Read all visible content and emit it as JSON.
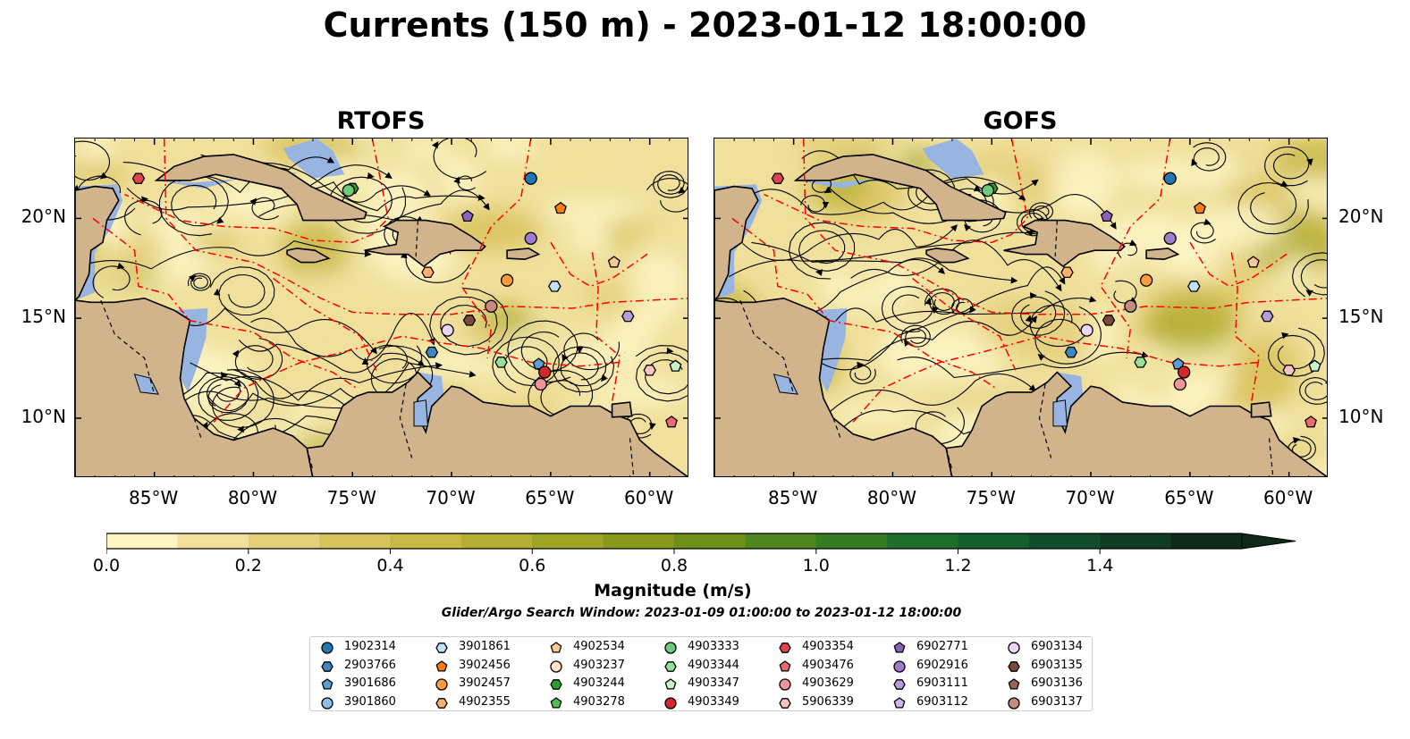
{
  "figure": {
    "title": "Currents (150 m) - 2023-01-12 18:00:00",
    "subtitle": "Glider/Argo Search Window: 2023-01-09 01:00:00 to 2023-01-12 18:00:00"
  },
  "map_extent": {
    "lon": [
      -89,
      -58
    ],
    "lat": [
      7,
      24
    ]
  },
  "axes": {
    "lon_ticks": [
      {
        "value": -85,
        "label": "85°W"
      },
      {
        "value": -80,
        "label": "80°W"
      },
      {
        "value": -75,
        "label": "75°W"
      },
      {
        "value": -70,
        "label": "70°W"
      },
      {
        "value": -65,
        "label": "65°W"
      },
      {
        "value": -60,
        "label": "60°W"
      }
    ],
    "lat_ticks": [
      {
        "value": 20,
        "label": "20°N"
      },
      {
        "value": 15,
        "label": "15°N"
      },
      {
        "value": 10,
        "label": "10°N"
      }
    ]
  },
  "panels": [
    {
      "id": "rtofs",
      "title": "RTOFS"
    },
    {
      "id": "gofs",
      "title": "GOFS"
    }
  ],
  "colorbar": {
    "label": "Magnitude (m/s)",
    "range": [
      0,
      1.6
    ],
    "extend": "max",
    "ticks": [
      {
        "value": 0.0,
        "label": "0.0"
      },
      {
        "value": 0.2,
        "label": "0.2"
      },
      {
        "value": 0.4,
        "label": "0.4"
      },
      {
        "value": 0.6,
        "label": "0.6"
      },
      {
        "value": 0.8,
        "label": "0.8"
      },
      {
        "value": 1.0,
        "label": "1.0"
      },
      {
        "value": 1.2,
        "label": "1.2"
      },
      {
        "value": 1.4,
        "label": "1.4"
      }
    ],
    "colors": [
      "#fdf5c4",
      "#f0e09c",
      "#e4cf7a",
      "#d8c25c",
      "#c8b848",
      "#b4ae34",
      "#9ea424",
      "#86991a",
      "#6c9018",
      "#4f861f",
      "#357c25",
      "#1f6f2c",
      "#145f2d",
      "#114d2a",
      "#113c24",
      "#0f2a1a"
    ]
  },
  "colors": {
    "ocean": "#98b4e0",
    "land": "#d2b48c",
    "eez_lines": "#ff0000",
    "streamlines": "#000000"
  },
  "legend": [
    {
      "id": "1902314",
      "shape": "circle",
      "color": "#1f77b4"
    },
    {
      "id": "2903766",
      "shape": "hexagon",
      "color": "#3c87c0"
    },
    {
      "id": "3901686",
      "shape": "pentagon",
      "color": "#5b9ed6"
    },
    {
      "id": "3901860",
      "shape": "circle",
      "color": "#8cbfe8"
    },
    {
      "id": "3901861",
      "shape": "hexagon",
      "color": "#bfe3fb"
    },
    {
      "id": "3902456",
      "shape": "pentagon",
      "color": "#ff7f0e"
    },
    {
      "id": "3902457",
      "shape": "circle",
      "color": "#ff9b3b"
    },
    {
      "id": "4902355",
      "shape": "hexagon",
      "color": "#ffb06a"
    },
    {
      "id": "4902534",
      "shape": "pentagon",
      "color": "#ffc993"
    },
    {
      "id": "4903237",
      "shape": "circle",
      "color": "#ffe3c4"
    },
    {
      "id": "4903244",
      "shape": "hexagon",
      "color": "#2ca02c"
    },
    {
      "id": "4903278",
      "shape": "pentagon",
      "color": "#4fbf4f"
    },
    {
      "id": "4903333",
      "shape": "circle",
      "color": "#6fc97a"
    },
    {
      "id": "4903344",
      "shape": "hexagon",
      "color": "#98e098"
    },
    {
      "id": "4903347",
      "shape": "pentagon",
      "color": "#c6f5c6"
    },
    {
      "id": "4903349",
      "shape": "circle",
      "color": "#d62728"
    },
    {
      "id": "4903354",
      "shape": "hexagon",
      "color": "#e0444a"
    },
    {
      "id": "4903476",
      "shape": "pentagon",
      "color": "#ec6a70"
    },
    {
      "id": "4903629",
      "shape": "circle",
      "color": "#f29498"
    },
    {
      "id": "5906339",
      "shape": "hexagon",
      "color": "#fbc3c1"
    },
    {
      "id": "6902771",
      "shape": "pentagon",
      "color": "#8a62b8"
    },
    {
      "id": "6902916",
      "shape": "circle",
      "color": "#9e7ccd"
    },
    {
      "id": "6903111",
      "shape": "hexagon",
      "color": "#b89bdb"
    },
    {
      "id": "6903112",
      "shape": "pentagon",
      "color": "#cdb8ea"
    },
    {
      "id": "6903134",
      "shape": "circle",
      "color": "#ecd6f7"
    },
    {
      "id": "6903135",
      "shape": "hexagon",
      "color": "#7b4b3a"
    },
    {
      "id": "6903136",
      "shape": "pentagon",
      "color": "#9a6553"
    },
    {
      "id": "6903137",
      "shape": "circle",
      "color": "#c48b7e"
    }
  ],
  "floats": [
    {
      "id": "1902314",
      "lon": -66.0,
      "lat": 22.0
    },
    {
      "id": "2903766",
      "lon": -71.0,
      "lat": 13.3
    },
    {
      "id": "3901686",
      "lon": -65.6,
      "lat": 12.7
    },
    {
      "id": "3901861",
      "lon": -64.8,
      "lat": 16.6
    },
    {
      "id": "3902456",
      "lon": -64.5,
      "lat": 20.5
    },
    {
      "id": "3902457",
      "lon": -67.2,
      "lat": 16.9
    },
    {
      "id": "4902355",
      "lon": -71.2,
      "lat": 17.3
    },
    {
      "id": "4902534",
      "lon": -61.8,
      "lat": 17.8
    },
    {
      "id": "4903244",
      "lon": -75.0,
      "lat": 21.5
    },
    {
      "id": "4903278",
      "lon": -75.2,
      "lat": 21.4
    },
    {
      "id": "4903333",
      "lon": -75.2,
      "lat": 21.4
    },
    {
      "id": "4903344",
      "lon": -67.5,
      "lat": 12.8
    },
    {
      "id": "4903347",
      "lon": -58.7,
      "lat": 12.6
    },
    {
      "id": "4903349",
      "lon": -65.3,
      "lat": 12.3
    },
    {
      "id": "4903354",
      "lon": -85.8,
      "lat": 22.0
    },
    {
      "id": "4903476",
      "lon": -58.9,
      "lat": 9.8
    },
    {
      "id": "4903629",
      "lon": -65.5,
      "lat": 11.7
    },
    {
      "id": "5906339",
      "lon": -60.0,
      "lat": 12.4
    },
    {
      "id": "6902771",
      "lon": -69.2,
      "lat": 20.1
    },
    {
      "id": "6902916",
      "lon": -66.0,
      "lat": 19.0
    },
    {
      "id": "6903111",
      "lon": -61.1,
      "lat": 15.1
    },
    {
      "id": "6903134",
      "lon": -70.2,
      "lat": 14.4
    },
    {
      "id": "6903135",
      "lon": -69.1,
      "lat": 14.9
    },
    {
      "id": "6903137",
      "lon": -68.0,
      "lat": 15.6
    }
  ]
}
